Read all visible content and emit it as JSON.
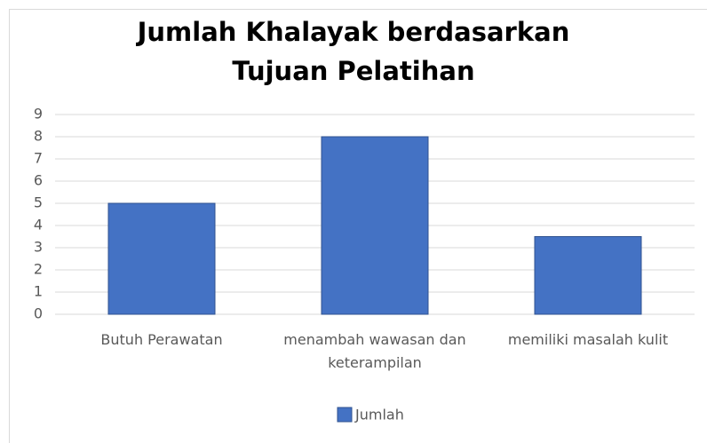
{
  "chart_data": {
    "type": "bar",
    "title": "Jumlah Khalayak berdasarkan Tujuan Pelatihan",
    "categories": [
      "Butuh Perawatan",
      "menambah wawasan dan keterampilan",
      "memiliki masalah kulit"
    ],
    "series": [
      {
        "name": "Jumlah",
        "color": "#4472c4",
        "values": [
          5,
          8,
          3.5
        ]
      }
    ],
    "ylim": [
      0,
      9
    ],
    "yticks": [
      0,
      1,
      2,
      3,
      4,
      5,
      6,
      7,
      8,
      9
    ],
    "grid": true,
    "legend": "bottom"
  }
}
